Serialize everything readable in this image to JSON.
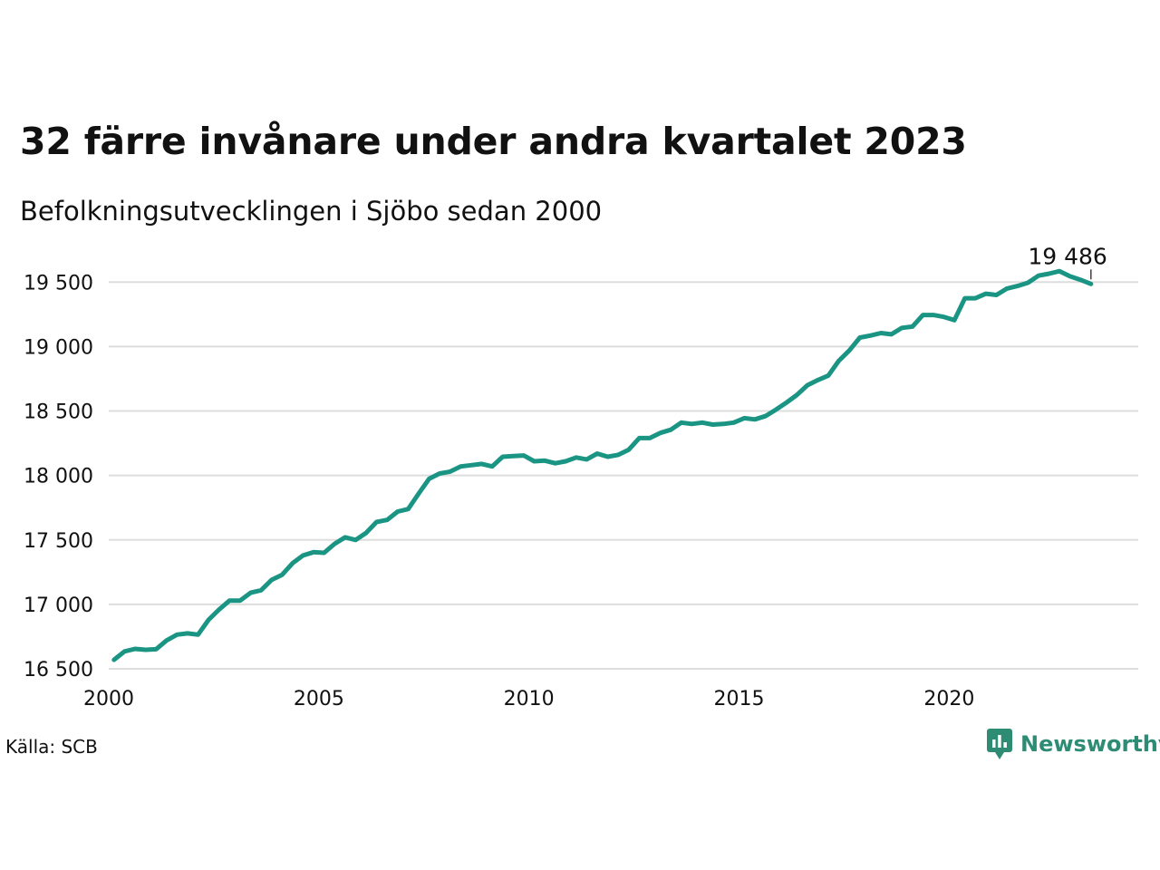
{
  "page": {
    "title": "32 färre invånare under andra kvartalet 2023",
    "subtitle": "Befolkningsutvecklingen i Sjöbo sedan 2000",
    "source": "Källa: SCB",
    "brand": "Newsworthy",
    "brand_icon": "newsworthy-logo-icon"
  },
  "chart_data": {
    "type": "line",
    "title": "32 färre invånare under andra kvartalet 2023",
    "subtitle": "Befolkningsutvecklingen i Sjöbo sedan 2000",
    "xlabel": "",
    "ylabel": "",
    "xlim": [
      2000,
      2024.5
    ],
    "ylim": [
      16430,
      19720
    ],
    "grid": true,
    "line_color": "#1a9483",
    "x_ticks": [
      2000,
      2005,
      2010,
      2015,
      2020
    ],
    "x_tick_labels": [
      "2000",
      "2005",
      "2010",
      "2015",
      "2020"
    ],
    "y_ticks": [
      16500,
      17000,
      17500,
      18000,
      18500,
      19000,
      19500
    ],
    "y_tick_labels": [
      "16 500",
      "17 000",
      "17 500",
      "18 000",
      "18 500",
      "19 000",
      "19 500"
    ],
    "end_label": "19 486",
    "series": [
      {
        "name": "",
        "x": [
          2000.125,
          2000.375,
          2000.625,
          2000.875,
          2001.125,
          2001.375,
          2001.625,
          2001.875,
          2002.125,
          2002.375,
          2002.625,
          2002.875,
          2003.125,
          2003.375,
          2003.625,
          2003.875,
          2004.125,
          2004.375,
          2004.625,
          2004.875,
          2005.125,
          2005.375,
          2005.625,
          2005.875,
          2006.125,
          2006.375,
          2006.625,
          2006.875,
          2007.125,
          2007.375,
          2007.625,
          2007.875,
          2008.125,
          2008.375,
          2008.625,
          2008.875,
          2009.125,
          2009.375,
          2009.625,
          2009.875,
          2010.125,
          2010.375,
          2010.625,
          2010.875,
          2011.125,
          2011.375,
          2011.625,
          2011.875,
          2012.125,
          2012.375,
          2012.625,
          2012.875,
          2013.125,
          2013.375,
          2013.625,
          2013.875,
          2014.125,
          2014.375,
          2014.625,
          2014.875,
          2015.125,
          2015.375,
          2015.625,
          2015.875,
          2016.125,
          2016.375,
          2016.625,
          2016.875,
          2017.125,
          2017.375,
          2017.625,
          2017.875,
          2018.125,
          2018.375,
          2018.625,
          2018.875,
          2019.125,
          2019.375,
          2019.625,
          2019.875,
          2020.125,
          2020.375,
          2020.625,
          2020.875,
          2021.125,
          2021.375,
          2021.625,
          2021.875,
          2022.125,
          2022.375,
          2022.625,
          2022.875,
          2023.125,
          2023.375
        ],
        "y": [
          16570,
          16635,
          16655,
          16648,
          16652,
          16720,
          16765,
          16775,
          16765,
          16880,
          16960,
          17030,
          17030,
          17090,
          17110,
          17190,
          17230,
          17320,
          17380,
          17405,
          17400,
          17470,
          17520,
          17500,
          17555,
          17640,
          17655,
          17720,
          17740,
          17860,
          17975,
          18015,
          18030,
          18070,
          18080,
          18090,
          18070,
          18145,
          18150,
          18155,
          18110,
          18115,
          18095,
          18110,
          18140,
          18125,
          18170,
          18145,
          18160,
          18200,
          18290,
          18290,
          18330,
          18355,
          18410,
          18400,
          18410,
          18395,
          18400,
          18410,
          18445,
          18435,
          18460,
          18510,
          18565,
          18625,
          18700,
          18740,
          18775,
          18890,
          18970,
          19070,
          19085,
          19105,
          19095,
          19145,
          19155,
          19245,
          19245,
          19230,
          19205,
          19375,
          19375,
          19410,
          19400,
          19450,
          19470,
          19495,
          19550,
          19565,
          19585,
          19545,
          19518,
          19486
        ]
      }
    ]
  }
}
